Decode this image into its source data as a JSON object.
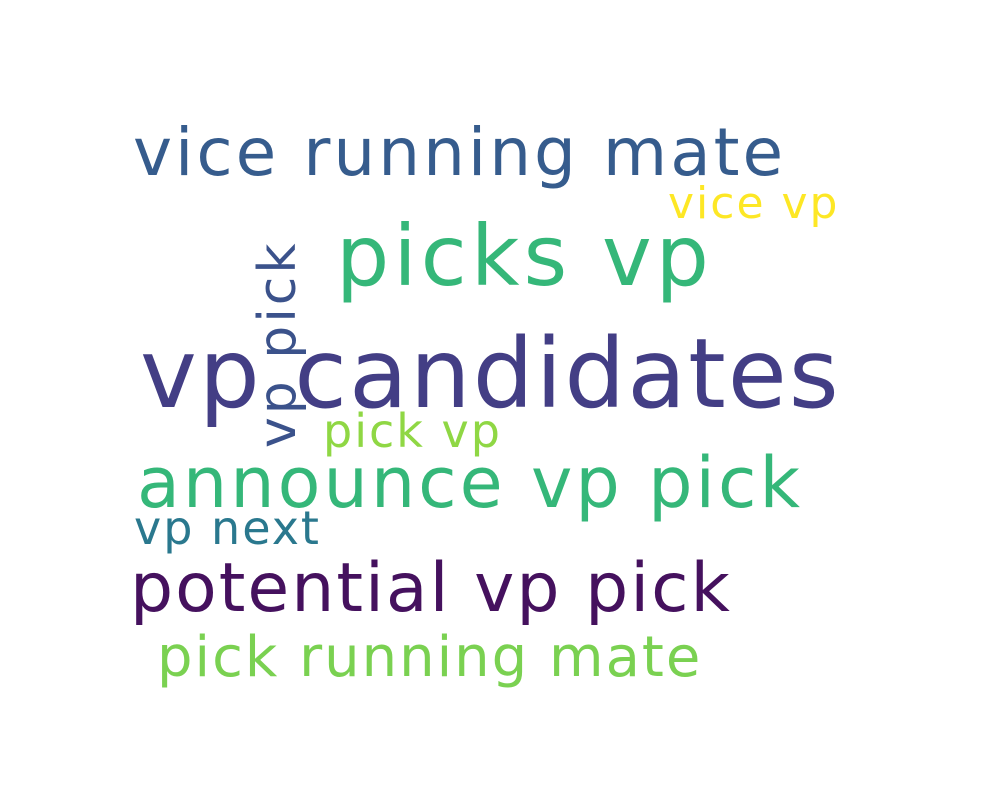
{
  "word_cloud": {
    "phrases": [
      {
        "id": "vp-candidates",
        "text": "vp candidates",
        "color": "#433e85"
      },
      {
        "id": "picks-vp",
        "text": "picks vp",
        "color": "#35b779"
      },
      {
        "id": "announce-vp-pick",
        "text": "announce vp pick",
        "color": "#35b779"
      },
      {
        "id": "vice-running-mate",
        "text": "vice running mate",
        "color": "#365c8d"
      },
      {
        "id": "potential-vp-pick",
        "text": "potential vp pick",
        "color": "#45115e"
      },
      {
        "id": "pick-running-mate",
        "text": "pick running mate",
        "color": "#7ad151"
      },
      {
        "id": "vp-pick",
        "text": "vp pick",
        "color": "#3b528b"
      },
      {
        "id": "vice-vp",
        "text": "vice vp",
        "color": "#fde725"
      },
      {
        "id": "pick-vp",
        "text": "pick vp",
        "color": "#8fd744"
      },
      {
        "id": "vp-next",
        "text": "vp next",
        "color": "#2a788e"
      }
    ]
  }
}
